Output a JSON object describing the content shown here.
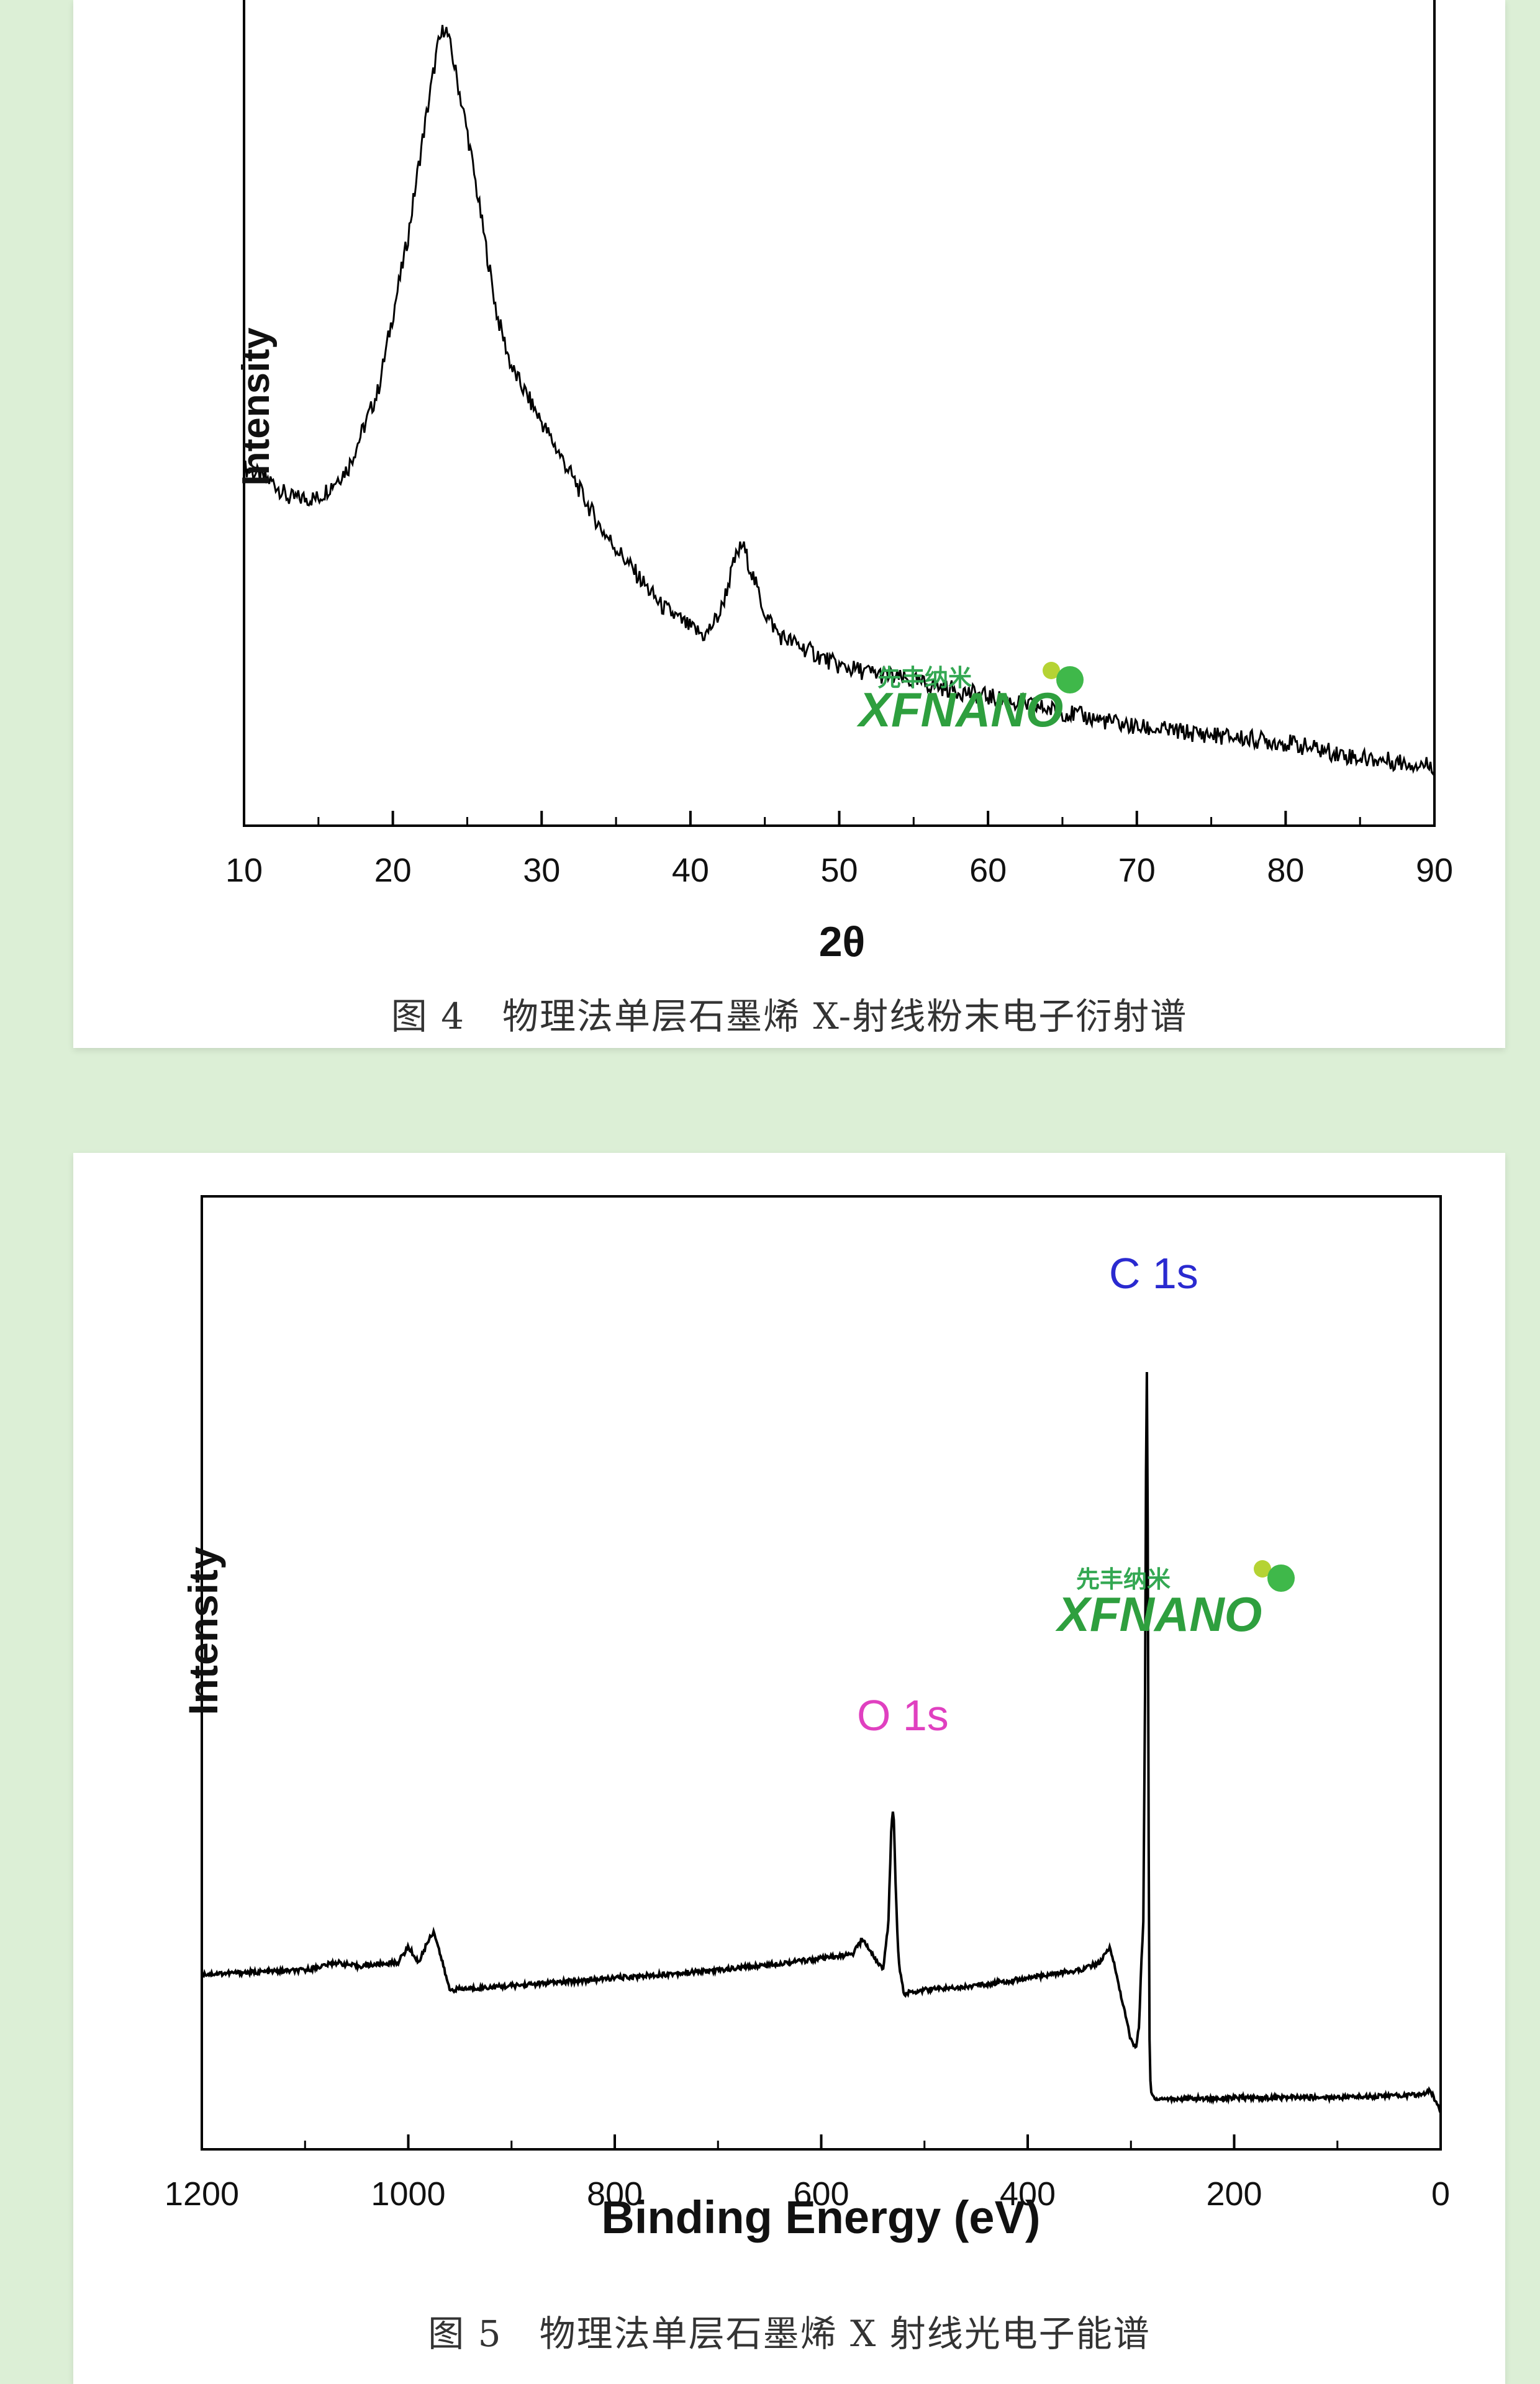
{
  "chart_data": [
    {
      "type": "line",
      "title": "",
      "xlabel": "2θ",
      "ylabel": "Intensity",
      "xlim": [
        10,
        90
      ],
      "x_ticks": [
        10,
        20,
        30,
        40,
        50,
        60,
        70,
        80,
        90
      ],
      "grid": false,
      "legend": "none",
      "series": [
        {
          "x": [
            10,
            12,
            13,
            15,
            17,
            19,
            20,
            21,
            22,
            23,
            23.5,
            24,
            25,
            26,
            27,
            28,
            30,
            32,
            34,
            36,
            38,
            40,
            41,
            42,
            43,
            43.5,
            44,
            45,
            46,
            48,
            50,
            55,
            60,
            65,
            70,
            75,
            80,
            85,
            90
          ],
          "y": [
            0.42,
            0.4,
            0.38,
            0.38,
            0.42,
            0.52,
            0.62,
            0.72,
            0.85,
            0.97,
            1.0,
            0.96,
            0.86,
            0.74,
            0.62,
            0.55,
            0.48,
            0.41,
            0.34,
            0.29,
            0.24,
            0.21,
            0.2,
            0.23,
            0.3,
            0.32,
            0.29,
            0.23,
            0.2,
            0.18,
            0.16,
            0.14,
            0.12,
            0.1,
            0.08,
            0.07,
            0.06,
            0.04,
            0.03
          ]
        }
      ],
      "caption": "图 4　物理法单层石墨烯 X-射线粉末电子衍射谱"
    },
    {
      "type": "line",
      "title": "",
      "xlabel": "Binding Energy (eV)",
      "ylabel": "Intensity",
      "xlim": [
        1200,
        0
      ],
      "x_ticks": [
        1200,
        1000,
        800,
        600,
        400,
        200,
        0
      ],
      "grid": false,
      "legend": "none",
      "annotations": [
        {
          "text": "O 1s",
          "x": 530,
          "color": "#e040c0"
        },
        {
          "text": "C 1s",
          "x": 284,
          "color": "#2a2ad0"
        }
      ],
      "series": [
        {
          "x": [
            1200,
            1100,
            1070,
            1050,
            1010,
            1000,
            990,
            980,
            975,
            965,
            960,
            900,
            800,
            700,
            600,
            570,
            560,
            545,
            540,
            535,
            532,
            530,
            528,
            525,
            520,
            500,
            450,
            400,
            350,
            330,
            320,
            310,
            300,
            295,
            292,
            290,
            288,
            286,
            285,
            284,
            283,
            282,
            281,
            280,
            275,
            250,
            200,
            100,
            20,
            10,
            0
          ],
          "y": [
            0.185,
            0.19,
            0.2,
            0.195,
            0.2,
            0.22,
            0.2,
            0.23,
            0.24,
            0.19,
            0.165,
            0.17,
            0.18,
            0.19,
            0.205,
            0.21,
            0.23,
            0.2,
            0.19,
            0.25,
            0.38,
            0.4,
            0.3,
            0.2,
            0.16,
            0.165,
            0.17,
            0.18,
            0.19,
            0.2,
            0.22,
            0.16,
            0.1,
            0.09,
            0.12,
            0.2,
            0.25,
            0.6,
            1.0,
            0.9,
            0.4,
            0.1,
            0.04,
            0.03,
            0.025,
            0.025,
            0.026,
            0.027,
            0.03,
            0.035,
            0.01
          ]
        }
      ],
      "caption": "图 5　物理法单层石墨烯 X 射线光电子能谱"
    }
  ],
  "watermarks": [
    {
      "top_text": "先丰纳米",
      "main_text": "XFNANO"
    },
    {
      "top_text": "先丰纳米",
      "main_text": "XFNANO"
    }
  ]
}
